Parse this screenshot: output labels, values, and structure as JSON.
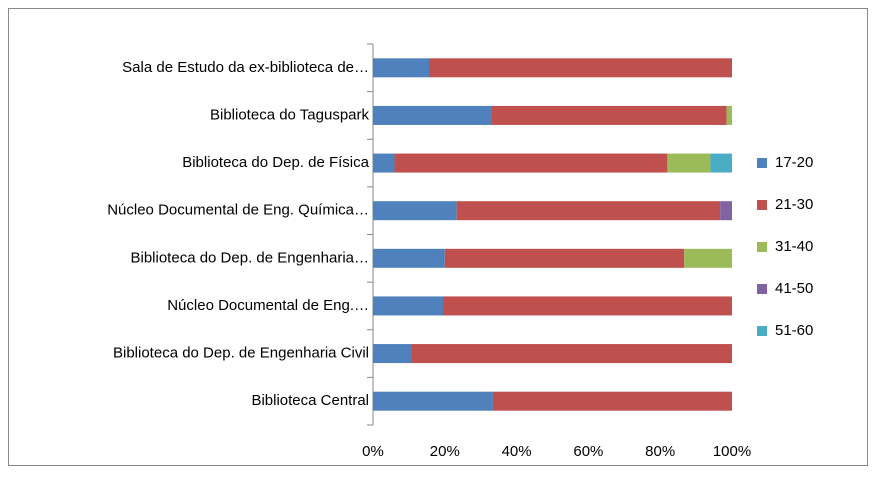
{
  "chart_data": {
    "type": "stacked_barh",
    "categories": [
      "Sala de Estudo da ex-biblioteca de…",
      "Biblioteca do Taguspark",
      "Biblioteca do Dep. de Física",
      "Núcleo Documental de Eng. Química…",
      "Biblioteca do Dep. de Engenharia…",
      "Núcleo Documental de Eng.…",
      "Biblioteca do Dep. de Engenharia Civil",
      "Biblioteca Central"
    ],
    "series": [
      {
        "name": "17-20",
        "color": "#4f81bd",
        "values": [
          15.6,
          33,
          6,
          23.3,
          20,
          19.5,
          10.6,
          33.4
        ]
      },
      {
        "name": "21-30",
        "color": "#c0504d",
        "values": [
          84.4,
          65.5,
          76,
          73.4,
          66.7,
          80.5,
          89.4,
          66.6
        ]
      },
      {
        "name": "31-40",
        "color": "#9bbb59",
        "values": [
          0,
          1.5,
          12,
          0,
          13.3,
          0,
          0,
          0
        ]
      },
      {
        "name": "41-50",
        "color": "#8064a2",
        "values": [
          0,
          0,
          0,
          3.3,
          0,
          0,
          0,
          0
        ]
      },
      {
        "name": "51-60",
        "color": "#4bacc6",
        "values": [
          0,
          0,
          6,
          0,
          0,
          0,
          0,
          0
        ]
      }
    ],
    "xlim": [
      0,
      100
    ],
    "xticks": [
      {
        "value": 0,
        "label": "0%"
      },
      {
        "value": 20,
        "label": "20%"
      },
      {
        "value": 40,
        "label": "40%"
      },
      {
        "value": 60,
        "label": "60%"
      },
      {
        "value": 80,
        "label": "80%"
      },
      {
        "value": 100,
        "label": "100%"
      }
    ],
    "legend": "right"
  }
}
